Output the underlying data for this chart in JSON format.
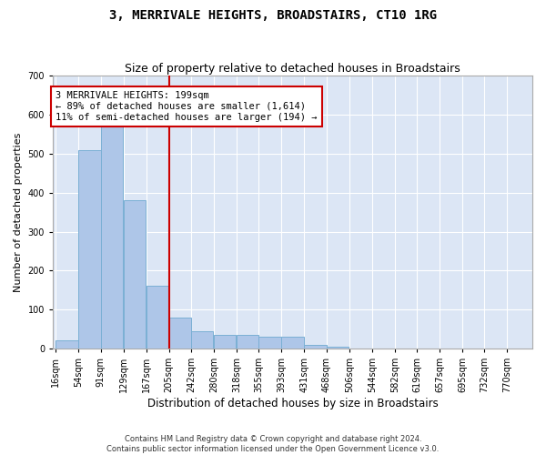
{
  "title": "3, MERRIVALE HEIGHTS, BROADSTAIRS, CT10 1RG",
  "subtitle": "Size of property relative to detached houses in Broadstairs",
  "xlabel": "Distribution of detached houses by size in Broadstairs",
  "ylabel": "Number of detached properties",
  "bar_color": "#aec6e8",
  "bar_edge_color": "#7aafd4",
  "background_color": "#dce6f5",
  "grid_color": "#ffffff",
  "vline_x": 205,
  "vline_color": "#cc0000",
  "annotation_line1": "3 MERRIVALE HEIGHTS: 199sqm",
  "annotation_line2": "← 89% of detached houses are smaller (1,614)",
  "annotation_line3": "11% of semi-detached houses are larger (194) →",
  "annotation_box_color": "#cc0000",
  "categories": [
    "16sqm",
    "54sqm",
    "91sqm",
    "129sqm",
    "167sqm",
    "205sqm",
    "242sqm",
    "280sqm",
    "318sqm",
    "355sqm",
    "393sqm",
    "431sqm",
    "468sqm",
    "506sqm",
    "544sqm",
    "582sqm",
    "619sqm",
    "657sqm",
    "695sqm",
    "732sqm",
    "770sqm"
  ],
  "bin_starts": [
    16,
    54,
    91,
    129,
    167,
    205,
    242,
    280,
    318,
    355,
    393,
    431,
    468,
    506,
    544,
    582,
    619,
    657,
    695,
    732,
    770
  ],
  "bin_width": 37,
  "values": [
    20,
    510,
    575,
    380,
    160,
    80,
    45,
    35,
    35,
    30,
    30,
    10,
    5,
    0,
    0,
    0,
    0,
    0,
    0,
    0,
    0
  ],
  "ylim": [
    0,
    700
  ],
  "yticks": [
    0,
    100,
    200,
    300,
    400,
    500,
    600,
    700
  ],
  "footer1": "Contains HM Land Registry data © Crown copyright and database right 2024.",
  "footer2": "Contains public sector information licensed under the Open Government Licence v3.0.",
  "title_fontsize": 10,
  "subtitle_fontsize": 9,
  "ylabel_fontsize": 8,
  "xlabel_fontsize": 8.5,
  "tick_fontsize": 7,
  "annot_fontsize": 7.5
}
